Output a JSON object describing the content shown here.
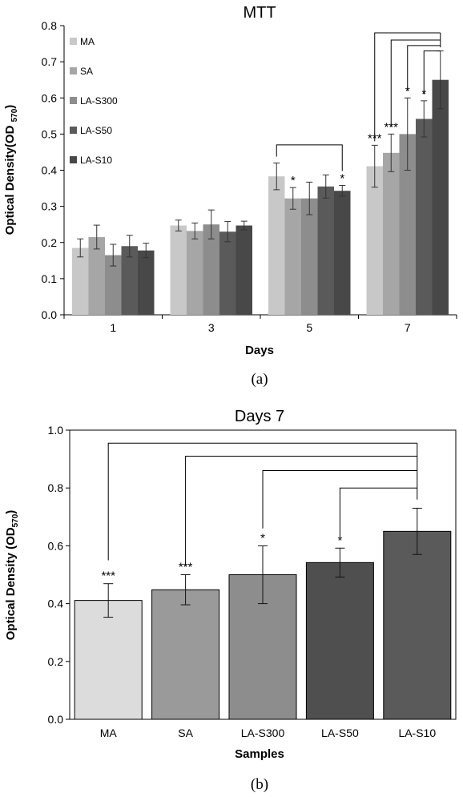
{
  "chart_data": [
    {
      "type": "bar",
      "title": "MTT",
      "xlabel": "Days",
      "ylabel": "Optical Density(OD ",
      "ylabel_sub": "570",
      "ylabel_end": ")",
      "caption": "(a)",
      "ylim": [
        0,
        0.8
      ],
      "yticks": [
        "0.0",
        "0.1",
        "0.2",
        "0.3",
        "0.4",
        "0.5",
        "0.6",
        "0.7",
        "0.8"
      ],
      "categories": [
        "1",
        "3",
        "5",
        "7"
      ],
      "legend_position": "top-left",
      "series": [
        {
          "name": "MA",
          "color": "#c8c8c8",
          "values": [
            0.185,
            0.247,
            0.383,
            0.411
          ],
          "errors": [
            0.025,
            0.015,
            0.037,
            0.058
          ]
        },
        {
          "name": "SA",
          "color": "#a6a6a6",
          "values": [
            0.215,
            0.232,
            0.322,
            0.448
          ],
          "errors": [
            0.033,
            0.022,
            0.03,
            0.052
          ]
        },
        {
          "name": "LA-S300",
          "color": "#8d8d8d",
          "values": [
            0.165,
            0.25,
            0.322,
            0.5
          ],
          "errors": [
            0.03,
            0.04,
            0.045,
            0.1
          ]
        },
        {
          "name": "LA-S50",
          "color": "#5a5a5a",
          "values": [
            0.19,
            0.23,
            0.355,
            0.542
          ],
          "errors": [
            0.03,
            0.028,
            0.032,
            0.05
          ]
        },
        {
          "name": "LA-S10",
          "color": "#484848",
          "values": [
            0.178,
            0.247,
            0.343,
            0.65
          ],
          "errors": [
            0.02,
            0.012,
            0.015,
            0.08
          ]
        }
      ],
      "significance": [
        {
          "category": 2,
          "series": 1,
          "label": "*"
        },
        {
          "category": 2,
          "series": 4,
          "label": "*"
        },
        {
          "category": 3,
          "series": 0,
          "label": "***"
        },
        {
          "category": 3,
          "series": 1,
          "label": "***"
        },
        {
          "category": 3,
          "series": 2,
          "label": "*"
        },
        {
          "category": 3,
          "series": 3,
          "label": "*"
        }
      ]
    },
    {
      "type": "bar",
      "title": "Days 7",
      "xlabel": "Samples",
      "ylabel": "Optical Density (OD",
      "ylabel_sub": "570",
      "ylabel_end": ")",
      "caption": "(b)",
      "ylim": [
        0,
        1.0
      ],
      "yticks": [
        "0.0",
        "0.2",
        "0.4",
        "0.6",
        "0.8",
        "1.0"
      ],
      "categories": [
        "MA",
        "SA",
        "LA-S300",
        "LA-S50",
        "LA-S10"
      ],
      "values": [
        0.411,
        0.448,
        0.5,
        0.542,
        0.65
      ],
      "errors": [
        0.058,
        0.052,
        0.1,
        0.05,
        0.08
      ],
      "colors": [
        "#dcdcdc",
        "#9a9a9a",
        "#8d8d8d",
        "#4f4f4f",
        "#5a5a5a"
      ],
      "significance": [
        "***",
        "***",
        "*",
        "*",
        ""
      ]
    }
  ]
}
